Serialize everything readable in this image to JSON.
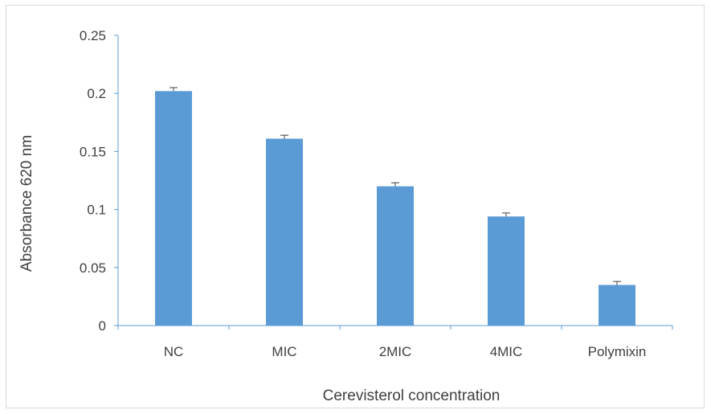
{
  "chart_data": {
    "type": "bar",
    "categories": [
      "NC",
      "MIC",
      "2MIC",
      "4MIC",
      "Polymixin"
    ],
    "values": [
      0.202,
      0.161,
      0.12,
      0.094,
      0.035
    ],
    "error": [
      0.003,
      0.003,
      0.003,
      0.003,
      0.003
    ],
    "title": "",
    "xlabel": "Cerevisterol concentration",
    "ylabel": "Absorbance 620 nm",
    "ylim": [
      0,
      0.25
    ],
    "yticks": [
      "0",
      "0.05",
      "0.1",
      "0.15",
      "0.2",
      "0.25"
    ],
    "grid": false,
    "legend": "none",
    "colors": {
      "bar": "#5b9bd5",
      "axis": "#5b9bd5",
      "text": "#404040",
      "error_bar": "#404040"
    }
  }
}
